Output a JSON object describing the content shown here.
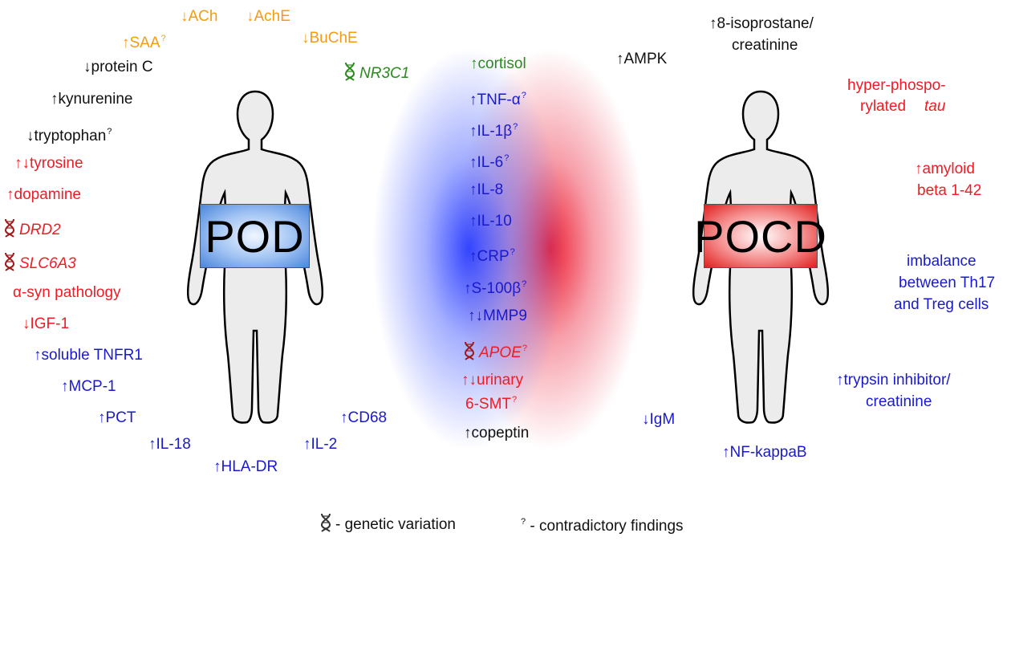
{
  "pod": {
    "sign": "POD",
    "markers": [
      {
        "key": "ach",
        "text": "↓ACh",
        "color": "orange"
      },
      {
        "key": "ache",
        "text": "↓AchE",
        "color": "orange"
      },
      {
        "key": "saa",
        "text": "↑SAA",
        "color": "orange",
        "q": true
      },
      {
        "key": "buche",
        "text": "↓BuChE",
        "color": "orange"
      },
      {
        "key": "protein_c",
        "text": "↓protein C",
        "color": "black"
      },
      {
        "key": "nr3c1",
        "text": "NR3C1",
        "color": "green",
        "dna": true,
        "italic": true
      },
      {
        "key": "kynurenine",
        "text": "↑kynurenine",
        "color": "black"
      },
      {
        "key": "tryptophan",
        "text": "↓tryptophan",
        "color": "black",
        "q": true
      },
      {
        "key": "tyrosine",
        "text": "↑↓tyrosine",
        "color": "red"
      },
      {
        "key": "dopamine",
        "text": "↑dopamine",
        "color": "red"
      },
      {
        "key": "drd2",
        "text": "DRD2",
        "color": "red",
        "dna": true,
        "italic": true
      },
      {
        "key": "slc6a3",
        "text": "SLC6A3",
        "color": "red",
        "dna": true,
        "italic": true
      },
      {
        "key": "asyn",
        "text": "α-syn pathology",
        "color": "red"
      },
      {
        "key": "igf1",
        "text": "↓IGF-1",
        "color": "red"
      },
      {
        "key": "tnfr1",
        "text": "↑soluble TNFR1",
        "color": "blue"
      },
      {
        "key": "mcp1",
        "text": "↑MCP-1",
        "color": "blue"
      },
      {
        "key": "pct",
        "text": "↑PCT",
        "color": "blue"
      },
      {
        "key": "il18",
        "text": "↑IL-18",
        "color": "blue"
      },
      {
        "key": "hladr",
        "text": "↑HLA-DR",
        "color": "blue"
      },
      {
        "key": "il2",
        "text": "↑IL-2",
        "color": "blue"
      },
      {
        "key": "cd68",
        "text": "↑CD68",
        "color": "blue"
      }
    ]
  },
  "shared": {
    "markers": [
      {
        "key": "cortisol",
        "text": "↑cortisol",
        "color": "green"
      },
      {
        "key": "tnfa",
        "text": "↑TNF-α",
        "color": "blue",
        "q": true
      },
      {
        "key": "il1b",
        "text": "↑IL-1β",
        "color": "blue",
        "q": true
      },
      {
        "key": "il6",
        "text": "↑IL-6",
        "color": "blue",
        "q": true
      },
      {
        "key": "il8",
        "text": "↑IL-8",
        "color": "blue"
      },
      {
        "key": "il10",
        "text": "↑IL-10",
        "color": "blue"
      },
      {
        "key": "crp",
        "text": "↑CRP",
        "color": "blue",
        "q": true
      },
      {
        "key": "s100b",
        "text": "↑S-100β",
        "color": "blue",
        "q": true
      },
      {
        "key": "mmp9",
        "text": "↑↓MMP9",
        "color": "blue"
      },
      {
        "key": "apoe",
        "text": "APOE",
        "color": "red",
        "dna": true,
        "italic": true,
        "q": true
      },
      {
        "key": "urinary",
        "text": "↑↓urinary",
        "color": "red"
      },
      {
        "key": "smt",
        "text": "6-SMT",
        "color": "red",
        "q": true
      },
      {
        "key": "copeptin",
        "text": "↑copeptin",
        "color": "black"
      }
    ]
  },
  "pocd": {
    "sign": "POCD",
    "markers": [
      {
        "key": "ampk",
        "text": "↑AMPK",
        "color": "black"
      },
      {
        "key": "isoprostane1",
        "text": "↑8-isoprostane/",
        "color": "black"
      },
      {
        "key": "isoprostane2",
        "text": "creatinine",
        "color": "black"
      },
      {
        "key": "tau1",
        "text": "hyper-phospo-",
        "color": "red"
      },
      {
        "key": "tau2a",
        "text": "rylated ",
        "color": "red"
      },
      {
        "key": "tau2b",
        "text": "tau",
        "color": "red",
        "italic": true
      },
      {
        "key": "amyloid1",
        "text": "↑amyloid",
        "color": "red"
      },
      {
        "key": "amyloid2",
        "text": "beta 1-42",
        "color": "red"
      },
      {
        "key": "th1",
        "text": "imbalance",
        "color": "blue"
      },
      {
        "key": "th2",
        "text": "between Th17",
        "color": "blue"
      },
      {
        "key": "th3",
        "text": "and Treg cells",
        "color": "blue"
      },
      {
        "key": "trypsin1",
        "text": "↑trypsin inhibitor/",
        "color": "blue"
      },
      {
        "key": "trypsin2",
        "text": "creatinine",
        "color": "blue"
      },
      {
        "key": "igm",
        "text": "↓IgM",
        "color": "blue"
      },
      {
        "key": "nfkb",
        "text": "↑NF-kappaB",
        "color": "blue"
      }
    ]
  },
  "legend": {
    "genetic": "- genetic variation",
    "q_symbol": "?",
    "contradictory": "- contradictory findings",
    "dna_icon": "dna-helix-icon"
  },
  "colors": {
    "orange": "#f39c12",
    "black": "#111111",
    "red": "#ee1c24",
    "blue": "#1a1acc",
    "green": "#2a8a1e",
    "pod_sign": "#4c86dc",
    "pocd_sign": "#e01f1f"
  }
}
